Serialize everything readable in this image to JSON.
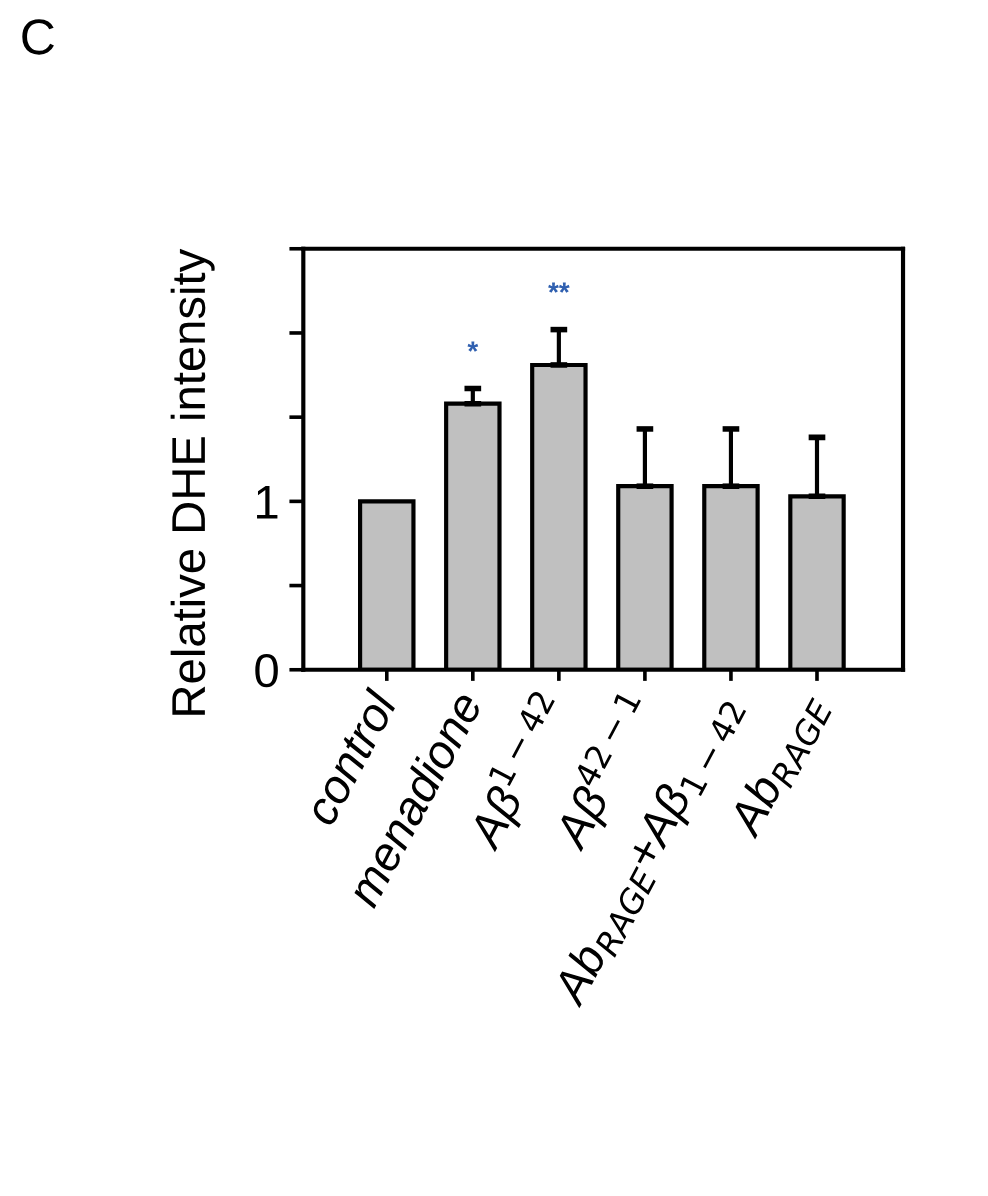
{
  "chart_data": {
    "type": "bar",
    "ylabel": "Relative DHE intensity",
    "categories": [
      "control",
      "menadione",
      "Aβ$^{1−42}$",
      "Aβ$^{42−1}$",
      "Ab$_{RAGE}$+Aβ$_{1−42}$",
      "Ab$_{RAGE}$"
    ],
    "values": [
      1.0,
      1.58,
      1.81,
      1.09,
      1.09,
      1.03
    ],
    "errors": [
      null,
      [
        1.58,
        1.67
      ],
      [
        1.81,
        2.02
      ],
      [
        1.09,
        1.43
      ],
      [
        1.09,
        1.43
      ],
      [
        1.03,
        1.38
      ]
    ],
    "color": "#c0c0c0",
    "ylim": [
      0,
      2.5
    ],
    "yticks": [
      0,
      {
        "value": 0.5,
        "label": null
      },
      1,
      {
        "value": 1.5,
        "label": null
      },
      {
        "value": 2,
        "label": null
      },
      {
        "value": 2.5,
        "label": null
      }
    ],
    "annotations": [
      "C",
      "*",
      "**"
    ],
    "grid": false,
    "legend": false
  }
}
